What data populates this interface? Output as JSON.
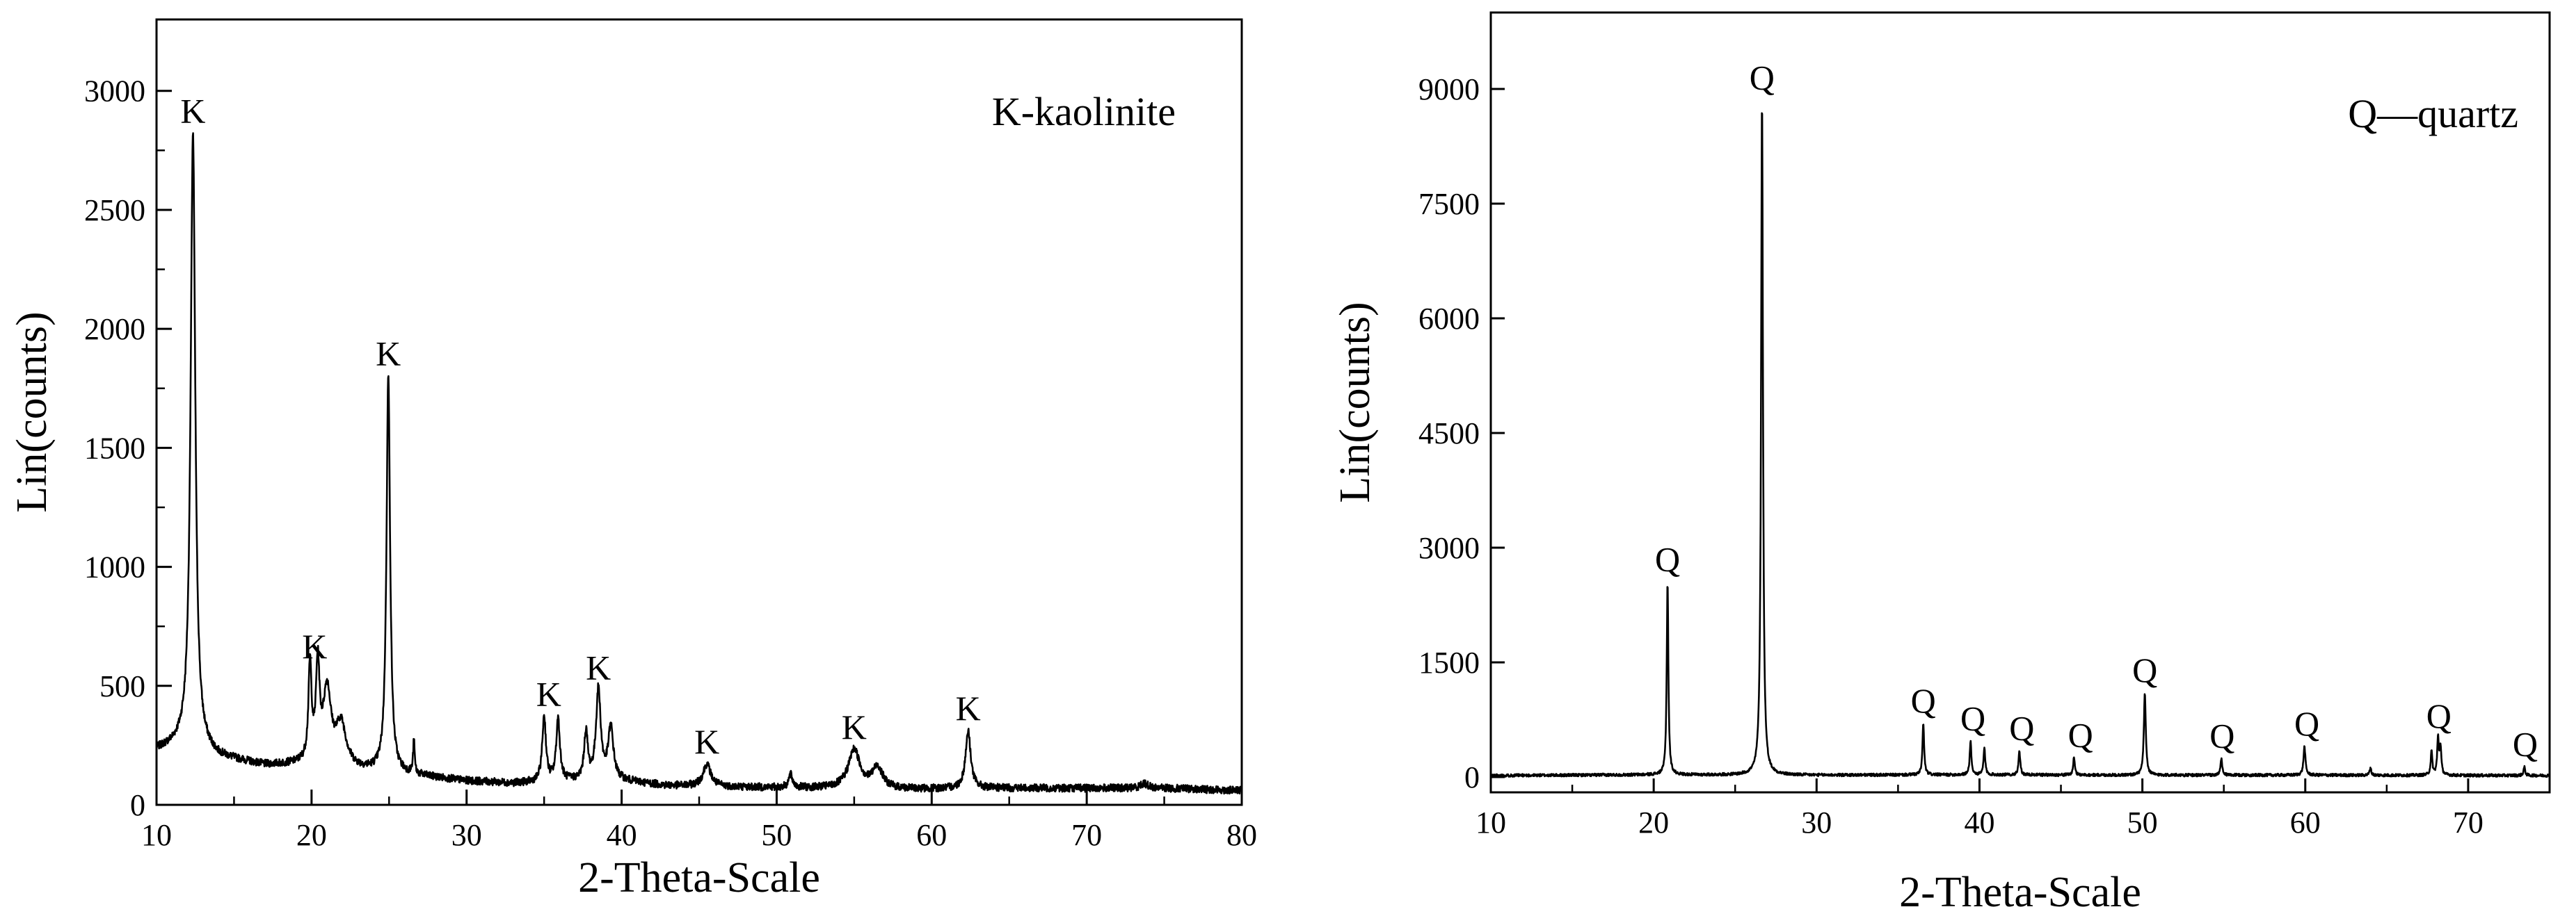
{
  "chart_data": [
    {
      "type": "line",
      "xlabel": "2-Theta-Scale",
      "ylabel": "Lin(counts)",
      "legend_text": "K-kaolinite",
      "xlim": [
        10,
        80
      ],
      "ylim": [
        0,
        3300
      ],
      "xticks": [
        10,
        20,
        30,
        40,
        50,
        60,
        70,
        80
      ],
      "yticks": [
        0,
        500,
        1000,
        1500,
        2000,
        2500,
        3000
      ],
      "baseline": [
        [
          10,
          230
        ],
        [
          12,
          260
        ],
        [
          14,
          200
        ],
        [
          17,
          165
        ],
        [
          20,
          170
        ],
        [
          23,
          145
        ],
        [
          27,
          120
        ],
        [
          30,
          100
        ],
        [
          33,
          90
        ],
        [
          37,
          100
        ],
        [
          40,
          100
        ],
        [
          43,
          80
        ],
        [
          47,
          75
        ],
        [
          52,
          70
        ],
        [
          58,
          65
        ],
        [
          65,
          70
        ],
        [
          70,
          70
        ],
        [
          75,
          70
        ],
        [
          80,
          60
        ]
      ],
      "peaks": [
        {
          "x": 12.35,
          "y": 2820,
          "w": 0.18
        },
        {
          "x": 19.9,
          "y": 570,
          "w": 0.12
        },
        {
          "x": 20.4,
          "y": 560,
          "w": 0.14
        },
        {
          "x": 21.0,
          "y": 470,
          "w": 0.3
        },
        {
          "x": 21.9,
          "y": 330,
          "w": 0.4
        },
        {
          "x": 24.95,
          "y": 1800,
          "w": 0.14
        },
        {
          "x": 26.6,
          "y": 260,
          "w": 0.06
        },
        {
          "x": 35.0,
          "y": 370,
          "w": 0.14
        },
        {
          "x": 35.9,
          "y": 360,
          "w": 0.14
        },
        {
          "x": 37.7,
          "y": 300,
          "w": 0.14
        },
        {
          "x": 38.5,
          "y": 480,
          "w": 0.18
        },
        {
          "x": 39.3,
          "y": 320,
          "w": 0.2
        },
        {
          "x": 45.5,
          "y": 170,
          "w": 0.3
        },
        {
          "x": 50.9,
          "y": 125,
          "w": 0.15
        },
        {
          "x": 55.0,
          "y": 230,
          "w": 0.45
        },
        {
          "x": 56.5,
          "y": 155,
          "w": 0.4
        },
        {
          "x": 62.35,
          "y": 310,
          "w": 0.2
        },
        {
          "x": 73.7,
          "y": 90,
          "w": 0.3
        }
      ],
      "labels": [
        {
          "text": "K",
          "x": 12.35,
          "y": 2820
        },
        {
          "text": "K",
          "x": 20.2,
          "y": 570
        },
        {
          "text": "K",
          "x": 24.95,
          "y": 1800
        },
        {
          "text": "K",
          "x": 35.3,
          "y": 370
        },
        {
          "text": "K",
          "x": 38.5,
          "y": 480
        },
        {
          "text": "K",
          "x": 45.5,
          "y": 170
        },
        {
          "text": "K",
          "x": 55.0,
          "y": 230
        },
        {
          "text": "K",
          "x": 62.35,
          "y": 310
        }
      ]
    },
    {
      "type": "line",
      "xlabel": "2-Theta-Scale",
      "ylabel": "Lin(counts)",
      "legend_text": "Q—quartz",
      "xlim": [
        10,
        75
      ],
      "ylim": [
        -200,
        10000
      ],
      "xticks": [
        10,
        20,
        30,
        40,
        50,
        60,
        70
      ],
      "yticks": [
        0,
        1500,
        3000,
        4500,
        6000,
        7500,
        9000
      ],
      "baseline": [
        [
          10,
          20
        ],
        [
          20,
          30
        ],
        [
          30,
          25
        ],
        [
          40,
          30
        ],
        [
          50,
          25
        ],
        [
          60,
          25
        ],
        [
          75,
          20
        ]
      ],
      "peaks": [
        {
          "x": 20.85,
          "y": 2550,
          "w": 0.06
        },
        {
          "x": 26.65,
          "y": 8850,
          "w": 0.07
        },
        {
          "x": 36.55,
          "y": 700,
          "w": 0.06
        },
        {
          "x": 39.45,
          "y": 470,
          "w": 0.06
        },
        {
          "x": 40.3,
          "y": 380,
          "w": 0.06
        },
        {
          "x": 42.45,
          "y": 340,
          "w": 0.06
        },
        {
          "x": 45.8,
          "y": 250,
          "w": 0.06
        },
        {
          "x": 50.15,
          "y": 1100,
          "w": 0.07
        },
        {
          "x": 54.85,
          "y": 240,
          "w": 0.06
        },
        {
          "x": 59.95,
          "y": 400,
          "w": 0.07
        },
        {
          "x": 64.0,
          "y": 120,
          "w": 0.06
        },
        {
          "x": 67.75,
          "y": 330,
          "w": 0.06
        },
        {
          "x": 68.15,
          "y": 500,
          "w": 0.06
        },
        {
          "x": 68.3,
          "y": 380,
          "w": 0.06
        },
        {
          "x": 73.45,
          "y": 130,
          "w": 0.06
        }
      ],
      "labels": [
        {
          "text": "Q",
          "x": 20.85,
          "y": 2550
        },
        {
          "text": "Q",
          "x": 26.65,
          "y": 8850
        },
        {
          "text": "Q",
          "x": 36.55,
          "y": 700
        },
        {
          "text": "Q",
          "x": 39.6,
          "y": 470
        },
        {
          "text": "Q",
          "x": 42.6,
          "y": 340
        },
        {
          "text": "Q",
          "x": 46.2,
          "y": 250
        },
        {
          "text": "Q",
          "x": 50.15,
          "y": 1100
        },
        {
          "text": "Q",
          "x": 54.9,
          "y": 240
        },
        {
          "text": "Q",
          "x": 60.1,
          "y": 400
        },
        {
          "text": "Q",
          "x": 68.2,
          "y": 500
        },
        {
          "text": "Q",
          "x": 73.5,
          "y": 130
        }
      ]
    }
  ]
}
